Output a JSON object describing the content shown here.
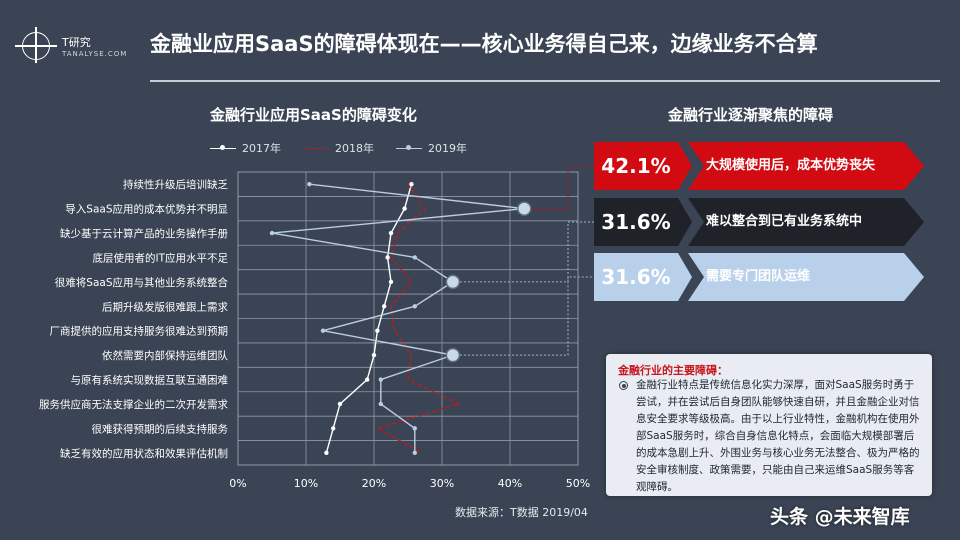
{
  "logo": {
    "cn": "T研究",
    "en": "TANALYSE.COM"
  },
  "main_title": "金融业应用SaaS的障碍体现在——核心业务得自己来，边缘业务不合算",
  "left_title": "金融行业应用SaaS的障碍变化",
  "right_title": "金融行业逐渐聚焦的障碍",
  "source": "数据来源：T数据 2019/04",
  "watermark": "头条 @未来智库",
  "colors": {
    "white_series": "#ffffff",
    "red_series": "#c8161d",
    "blue_series": "#b9cde3",
    "banner_red": "#d20a11",
    "banner_dark": "#1f2329",
    "banner_blue": "#b8d0ea"
  },
  "chart_data": {
    "type": "line",
    "orientation": "horizontal",
    "categories": [
      "持续性升级后培训缺乏",
      "导入SaaS应用的成本优势并不明显",
      "缺少基于云计算产品的业务操作手册",
      "底层使用者的IT应用水平不足",
      "很难将SaaS应用与其他业务系统整合",
      "后期升级发版很难跟上需求",
      "厂商提供的应用支持服务很难达到预期",
      "依然需要内部保持运维团队",
      "与原有系统实现数据互联互通困难",
      "服务供应商无法支撑企业的二次开发需求",
      "很难获得预期的后续支持服务",
      "缺乏有效的应用状态和效果评估机制"
    ],
    "series": [
      {
        "name": "2017年",
        "values": [
          25.5,
          24.5,
          22.5,
          22.0,
          22.5,
          21.5,
          20.5,
          20.0,
          19.0,
          15.0,
          14.0,
          13.0
        ]
      },
      {
        "name": "2018年",
        "values": [
          25.0,
          27.5,
          23.5,
          22.5,
          25.5,
          22.5,
          23.0,
          25.5,
          25.0,
          32.5,
          20.5,
          27.0
        ]
      },
      {
        "name": "2019年",
        "values": [
          10.5,
          42.1,
          5.0,
          26.0,
          31.6,
          26.0,
          12.5,
          31.6,
          21.0,
          21.0,
          26.0,
          26.0
        ]
      }
    ],
    "x_ticks": [
      "0%",
      "10%",
      "20%",
      "30%",
      "40%",
      "50%"
    ],
    "xlim": [
      0,
      50
    ],
    "grid": true,
    "legend": "top-left"
  },
  "banners": [
    {
      "value": "42.1%",
      "text": "大规模使用后，成本优势丧失"
    },
    {
      "value": "31.6%",
      "text": "难以整合到已有业务系统中"
    },
    {
      "value": "31.6%",
      "text": "需要专门团队运维"
    }
  ],
  "note": {
    "title": "金融行业的主要障碍：",
    "body": "金融行业特点是传统信息化实力深厚，面对SaaS服务时勇于尝试，并在尝试后自身团队能够快速自研，并且金融企业对信息安全要求等级极高。由于以上行业特性，金融机构在使用外部SaaS服务时，综合自身信息化特点，会面临大规模部署后的成本急剧上升、外围业务与核心业务无法整合、极为严格的安全审核制度、政策需要，只能由自己来运维SaaS服务等客观障碍。"
  }
}
